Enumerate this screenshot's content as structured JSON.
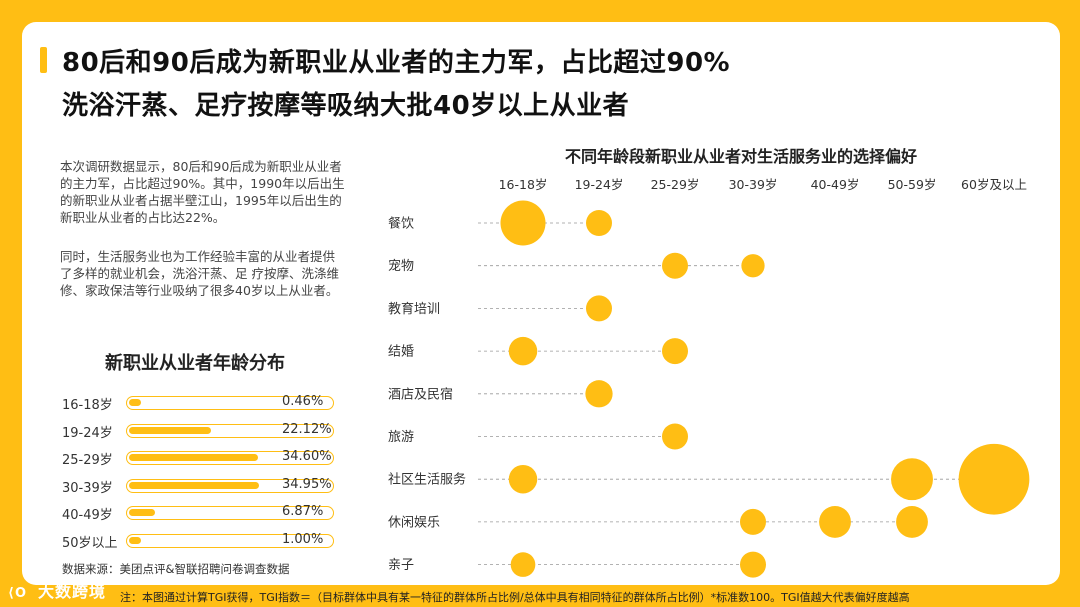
{
  "header": {
    "line1": "80后和90后成为新职业从业者的主力军，占比超过90%",
    "line2": "洗浴汗蒸、足疗按摩等吸纳大批40岁以上从业者"
  },
  "description": {
    "para1": "本次调研数据显示，80后和90后成为新职业从业者的主力军，占比超过90%。其中，1990年以后出生的新职业从业者占据半壁江山，1995年以后出生的新职业从业者的占比达22%。",
    "para2": "同时，生活服务业也为工作经验丰富的从业者提供了多样的就业机会，洗浴汗蒸、足 疗按摩、洗涤维修、家政保洁等行业吸纳了很多40岁以上从业者。"
  },
  "age_distribution": {
    "title": "新职业从业者年龄分布",
    "rows": [
      {
        "label": "16-18岁",
        "value_text": "0.46%",
        "value": 0.46
      },
      {
        "label": "19-24岁",
        "value_text": "22.12%",
        "value": 22.12
      },
      {
        "label": "25-29岁",
        "value_text": "34.60%",
        "value": 34.6
      },
      {
        "label": "30-39岁",
        "value_text": "34.95%",
        "value": 34.95
      },
      {
        "label": "40-49岁",
        "value_text": "6.87%",
        "value": 6.87
      },
      {
        "label": "50岁以上",
        "value_text": "1.00%",
        "value": 1.0
      }
    ]
  },
  "source": "数据来源：美团点评&智联招聘问卷调查数据",
  "logo": {
    "mark": "⟨O",
    "name": "大数跨境"
  },
  "footnote": "注：本图通过计算TGI获得，TGI指数＝（目标群体中具有某一特征的群体所占比例/总体中具有相同特征的群体所占比例）*标准数100。TGI值越大代表偏好度越高",
  "chart_data": {
    "type": "scatter",
    "title": "不同年龄段新职业从业者对生活服务业的选择偏好",
    "x_categories": [
      "16-18岁",
      "19-24岁",
      "25-29岁",
      "30-39岁",
      "40-49岁",
      "50-59岁",
      "60岁及以上"
    ],
    "y_categories": [
      "餐饮",
      "宠物",
      "教育培训",
      "结婚",
      "酒店及民宿",
      "旅游",
      "社区生活服务",
      "休闲娱乐",
      "亲子"
    ],
    "color": "#FFBE14",
    "points": [
      {
        "row": "餐饮",
        "col": "16-18岁",
        "size": 3
      },
      {
        "row": "餐饮",
        "col": "19-24岁",
        "size": 1
      },
      {
        "row": "宠物",
        "col": "25-29岁",
        "size": 1
      },
      {
        "row": "宠物",
        "col": "30-39岁",
        "size": 0.8
      },
      {
        "row": "教育培训",
        "col": "19-24岁",
        "size": 1
      },
      {
        "row": "结婚",
        "col": "16-18岁",
        "size": 1.2
      },
      {
        "row": "结婚",
        "col": "25-29岁",
        "size": 1
      },
      {
        "row": "酒店及民宿",
        "col": "19-24岁",
        "size": 1.1
      },
      {
        "row": "旅游",
        "col": "25-29岁",
        "size": 1
      },
      {
        "row": "社区生活服务",
        "col": "16-18岁",
        "size": 1.2
      },
      {
        "row": "社区生活服务",
        "col": "50-59岁",
        "size": 2.6
      },
      {
        "row": "社区生活服务",
        "col": "60岁及以上",
        "size": 7.4
      },
      {
        "row": "休闲娱乐",
        "col": "30-39岁",
        "size": 1
      },
      {
        "row": "休闲娱乐",
        "col": "40-49岁",
        "size": 1.5
      },
      {
        "row": "休闲娱乐",
        "col": "50-59岁",
        "size": 1.5
      },
      {
        "row": "亲子",
        "col": "16-18岁",
        "size": 0.9
      },
      {
        "row": "亲子",
        "col": "30-39岁",
        "size": 1
      }
    ]
  }
}
